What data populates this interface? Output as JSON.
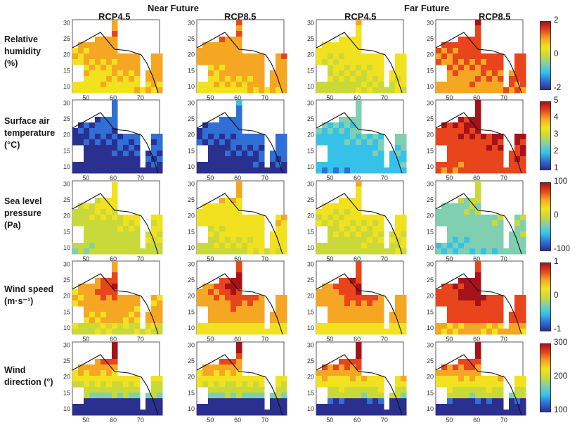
{
  "header": {
    "near_future": "Near Future",
    "far_future": "Far Future",
    "columns": [
      "RCP4.5",
      "RCP8.5",
      "RCP4.5",
      "RCP8.5"
    ]
  },
  "rows": [
    {
      "label_lines": [
        "Relative",
        "humidity",
        "(%)"
      ]
    },
    {
      "label_lines": [
        "Surface air",
        "temperature",
        "(°C)"
      ]
    },
    {
      "label_lines": [
        "Sea level",
        "pressure",
        "(Pa)"
      ]
    },
    {
      "label_lines": [
        "Wind speed",
        "(m·s⁻¹)"
      ]
    },
    {
      "label_lines": [
        "Wind",
        "direction (°)"
      ]
    }
  ],
  "colors": {
    "colormap": [
      "#2b2f8f",
      "#2f6fd6",
      "#36c2e8",
      "#7fcfb0",
      "#c9d93a",
      "#f2e11f",
      "#f5a623",
      "#e8451c",
      "#a5121a"
    ],
    "land": "#ffffff",
    "coast": "#111111"
  },
  "chart_data": {
    "type": "heatmap",
    "map_extent": {
      "lon": [
        45,
        77
      ],
      "lat": [
        8,
        31
      ]
    },
    "x_ticks": [
      "50",
      "60",
      "70"
    ],
    "y_ticks": [
      "10",
      "15",
      "20",
      "25",
      "30"
    ],
    "panels_levels_note_free": true,
    "colorbars": [
      {
        "row": 0,
        "ticks": [
          "2",
          "0",
          "-2"
        ],
        "range": [
          -2,
          2
        ]
      },
      {
        "row": 1,
        "ticks": [
          "5",
          "4",
          "3",
          "2",
          "1"
        ],
        "range": [
          1,
          5
        ]
      },
      {
        "row": 2,
        "ticks": [
          "100",
          "0",
          "-100"
        ],
        "range": [
          -100,
          100
        ]
      },
      {
        "row": 3,
        "ticks": [
          "1",
          "0",
          "-1"
        ],
        "range": [
          -1,
          1
        ]
      },
      {
        "row": 4,
        "ticks": [
          "300",
          "200",
          "100"
        ],
        "range": [
          100,
          300
        ]
      }
    ],
    "panel_levels": [
      [
        0.72,
        0.74,
        0.6,
        0.84
      ],
      [
        0.06,
        0.08,
        0.3,
        0.92
      ],
      [
        0.55,
        0.62,
        0.58,
        0.4
      ],
      [
        0.7,
        0.76,
        0.76,
        0.86
      ],
      [
        0.5,
        0.5,
        0.55,
        0.55
      ]
    ]
  }
}
